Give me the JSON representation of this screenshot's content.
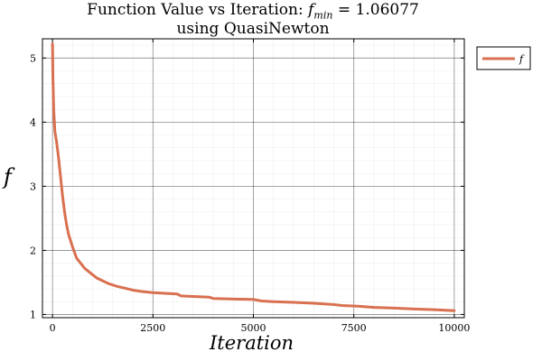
{
  "chart_data": {
    "type": "line",
    "title_line1_prefix": "Function Value vs Iteration: ",
    "title_symbol": "f",
    "title_subscript": "min",
    "title_equals": " =  ",
    "title_value": "1.06077",
    "title_line2": "using QuasiNewton",
    "xlabel": "Iteration",
    "ylabel": "f",
    "xlim": [
      -250,
      10250
    ],
    "ylim": [
      0.95,
      5.3
    ],
    "xticks": [
      0,
      2500,
      5000,
      7500,
      10000
    ],
    "xtick_labels": [
      "0",
      "2500",
      "5000",
      "7500",
      "10000"
    ],
    "yticks": [
      1,
      2,
      3,
      4,
      5
    ],
    "ytick_labels": [
      "1",
      "2",
      "3",
      "4",
      "5"
    ],
    "grid": true,
    "minor_grid": true,
    "legend_position": "outside-top-right",
    "series": [
      {
        "name": "f",
        "color": "#d9704f",
        "x": [
          0,
          10,
          30,
          60,
          100,
          150,
          200,
          250,
          300,
          350,
          400,
          500,
          600,
          800,
          1000,
          1100,
          1200,
          1400,
          1600,
          1800,
          2000,
          2200,
          2500,
          2800,
          3100,
          3200,
          3500,
          3900,
          4000,
          4500,
          5000,
          5200,
          5500,
          6000,
          6500,
          7000,
          7200,
          7600,
          8000,
          8500,
          9000,
          9500,
          10000
        ],
        "y": [
          5.22,
          4.7,
          4.2,
          3.85,
          3.7,
          3.45,
          3.15,
          2.85,
          2.6,
          2.4,
          2.25,
          2.05,
          1.88,
          1.72,
          1.62,
          1.57,
          1.54,
          1.48,
          1.44,
          1.41,
          1.38,
          1.36,
          1.34,
          1.33,
          1.32,
          1.29,
          1.28,
          1.27,
          1.25,
          1.24,
          1.235,
          1.21,
          1.2,
          1.19,
          1.175,
          1.155,
          1.14,
          1.13,
          1.11,
          1.1,
          1.085,
          1.075,
          1.06
        ]
      }
    ]
  }
}
